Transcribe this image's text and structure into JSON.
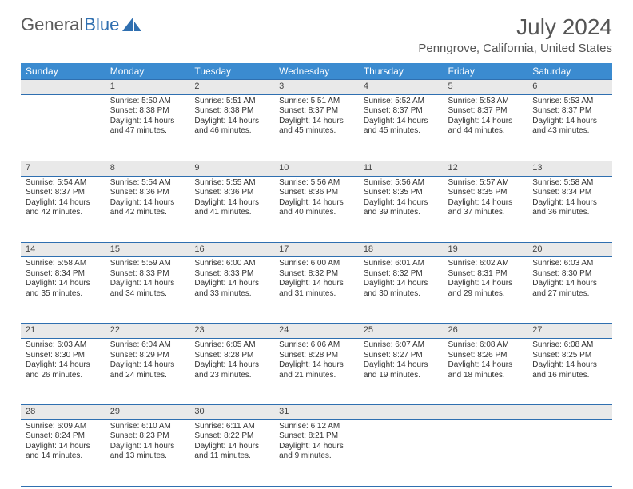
{
  "brand": {
    "part1": "General",
    "part2": "Blue"
  },
  "title": "July 2024",
  "location": "Penngrove, California, United States",
  "colors": {
    "header_bg": "#3b8bd0",
    "header_text": "#ffffff",
    "rule": "#2f6fb0",
    "daynum_bg": "#e9e9e9",
    "text": "#333333",
    "title_text": "#555555"
  },
  "weekday_labels": [
    "Sunday",
    "Monday",
    "Tuesday",
    "Wednesday",
    "Thursday",
    "Friday",
    "Saturday"
  ],
  "weeks": [
    [
      null,
      {
        "n": "1",
        "sr": "5:50 AM",
        "ss": "8:38 PM",
        "dl": "14 hours and 47 minutes."
      },
      {
        "n": "2",
        "sr": "5:51 AM",
        "ss": "8:38 PM",
        "dl": "14 hours and 46 minutes."
      },
      {
        "n": "3",
        "sr": "5:51 AM",
        "ss": "8:37 PM",
        "dl": "14 hours and 45 minutes."
      },
      {
        "n": "4",
        "sr": "5:52 AM",
        "ss": "8:37 PM",
        "dl": "14 hours and 45 minutes."
      },
      {
        "n": "5",
        "sr": "5:53 AM",
        "ss": "8:37 PM",
        "dl": "14 hours and 44 minutes."
      },
      {
        "n": "6",
        "sr": "5:53 AM",
        "ss": "8:37 PM",
        "dl": "14 hours and 43 minutes."
      }
    ],
    [
      {
        "n": "7",
        "sr": "5:54 AM",
        "ss": "8:37 PM",
        "dl": "14 hours and 42 minutes."
      },
      {
        "n": "8",
        "sr": "5:54 AM",
        "ss": "8:36 PM",
        "dl": "14 hours and 42 minutes."
      },
      {
        "n": "9",
        "sr": "5:55 AM",
        "ss": "8:36 PM",
        "dl": "14 hours and 41 minutes."
      },
      {
        "n": "10",
        "sr": "5:56 AM",
        "ss": "8:36 PM",
        "dl": "14 hours and 40 minutes."
      },
      {
        "n": "11",
        "sr": "5:56 AM",
        "ss": "8:35 PM",
        "dl": "14 hours and 39 minutes."
      },
      {
        "n": "12",
        "sr": "5:57 AM",
        "ss": "8:35 PM",
        "dl": "14 hours and 37 minutes."
      },
      {
        "n": "13",
        "sr": "5:58 AM",
        "ss": "8:34 PM",
        "dl": "14 hours and 36 minutes."
      }
    ],
    [
      {
        "n": "14",
        "sr": "5:58 AM",
        "ss": "8:34 PM",
        "dl": "14 hours and 35 minutes."
      },
      {
        "n": "15",
        "sr": "5:59 AM",
        "ss": "8:33 PM",
        "dl": "14 hours and 34 minutes."
      },
      {
        "n": "16",
        "sr": "6:00 AM",
        "ss": "8:33 PM",
        "dl": "14 hours and 33 minutes."
      },
      {
        "n": "17",
        "sr": "6:00 AM",
        "ss": "8:32 PM",
        "dl": "14 hours and 31 minutes."
      },
      {
        "n": "18",
        "sr": "6:01 AM",
        "ss": "8:32 PM",
        "dl": "14 hours and 30 minutes."
      },
      {
        "n": "19",
        "sr": "6:02 AM",
        "ss": "8:31 PM",
        "dl": "14 hours and 29 minutes."
      },
      {
        "n": "20",
        "sr": "6:03 AM",
        "ss": "8:30 PM",
        "dl": "14 hours and 27 minutes."
      }
    ],
    [
      {
        "n": "21",
        "sr": "6:03 AM",
        "ss": "8:30 PM",
        "dl": "14 hours and 26 minutes."
      },
      {
        "n": "22",
        "sr": "6:04 AM",
        "ss": "8:29 PM",
        "dl": "14 hours and 24 minutes."
      },
      {
        "n": "23",
        "sr": "6:05 AM",
        "ss": "8:28 PM",
        "dl": "14 hours and 23 minutes."
      },
      {
        "n": "24",
        "sr": "6:06 AM",
        "ss": "8:28 PM",
        "dl": "14 hours and 21 minutes."
      },
      {
        "n": "25",
        "sr": "6:07 AM",
        "ss": "8:27 PM",
        "dl": "14 hours and 19 minutes."
      },
      {
        "n": "26",
        "sr": "6:08 AM",
        "ss": "8:26 PM",
        "dl": "14 hours and 18 minutes."
      },
      {
        "n": "27",
        "sr": "6:08 AM",
        "ss": "8:25 PM",
        "dl": "14 hours and 16 minutes."
      }
    ],
    [
      {
        "n": "28",
        "sr": "6:09 AM",
        "ss": "8:24 PM",
        "dl": "14 hours and 14 minutes."
      },
      {
        "n": "29",
        "sr": "6:10 AM",
        "ss": "8:23 PM",
        "dl": "14 hours and 13 minutes."
      },
      {
        "n": "30",
        "sr": "6:11 AM",
        "ss": "8:22 PM",
        "dl": "14 hours and 11 minutes."
      },
      {
        "n": "31",
        "sr": "6:12 AM",
        "ss": "8:21 PM",
        "dl": "14 hours and 9 minutes."
      },
      null,
      null,
      null
    ]
  ],
  "labels": {
    "sunrise": "Sunrise:",
    "sunset": "Sunset:",
    "daylight": "Daylight:"
  }
}
